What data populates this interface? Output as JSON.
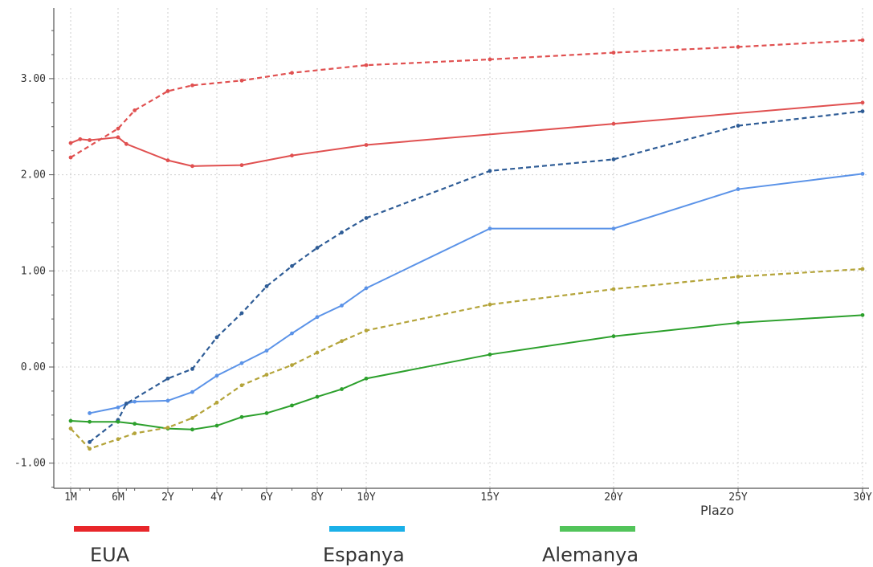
{
  "chart_data": {
    "type": "line",
    "xlabel": "Plazo",
    "ylabel": "",
    "x_categories": [
      "1M",
      "3M",
      "6M",
      "9M",
      "1Y",
      "2Y",
      "3Y",
      "4Y",
      "5Y",
      "6Y",
      "7Y",
      "8Y",
      "9Y",
      "10Y",
      "15Y",
      "20Y",
      "25Y",
      "30Y"
    ],
    "x_tick_labels": [
      "1M",
      "6M",
      "2Y",
      "4Y",
      "6Y",
      "8Y",
      "10Y",
      "15Y",
      "20Y",
      "25Y",
      "30Y"
    ],
    "y_tick_labels": [
      "-1.00",
      "0.00",
      "1.00",
      "2.00",
      "3.00"
    ],
    "ylim": [
      -1.25,
      3.65
    ],
    "grid": true,
    "series": [
      {
        "name": "EUA",
        "style": "solid",
        "color": "#e05050",
        "points": [
          [
            "1M",
            2.33
          ],
          [
            "2M",
            2.37
          ],
          [
            "3M",
            2.36
          ],
          [
            "6M",
            2.39
          ],
          [
            "9M",
            2.32
          ],
          [
            "2Y",
            2.15
          ],
          [
            "3Y",
            2.09
          ],
          [
            "5Y",
            2.1
          ],
          [
            "7Y",
            2.2
          ],
          [
            "10Y",
            2.31
          ],
          [
            "20Y",
            2.53
          ],
          [
            "30Y",
            2.75
          ]
        ]
      },
      {
        "name": "EUA",
        "style": "dashed",
        "color": "#e05050",
        "points": [
          [
            "1M",
            2.18
          ],
          [
            "6M",
            2.48
          ],
          [
            "1Y",
            2.67
          ],
          [
            "2Y",
            2.87
          ],
          [
            "3Y",
            2.93
          ],
          [
            "5Y",
            2.98
          ],
          [
            "7Y",
            3.06
          ],
          [
            "10Y",
            3.14
          ],
          [
            "15Y",
            3.2
          ],
          [
            "20Y",
            3.27
          ],
          [
            "25Y",
            3.33
          ],
          [
            "30Y",
            3.4
          ]
        ]
      },
      {
        "name": "Espanya",
        "style": "solid",
        "color": "#5b93e8",
        "points": [
          [
            "3M",
            -0.48
          ],
          [
            "6M",
            -0.42
          ],
          [
            "9M",
            -0.38
          ],
          [
            "1Y",
            -0.36
          ],
          [
            "2Y",
            -0.35
          ],
          [
            "3Y",
            -0.26
          ],
          [
            "4Y",
            -0.09
          ],
          [
            "5Y",
            0.04
          ],
          [
            "6Y",
            0.17
          ],
          [
            "7Y",
            0.35
          ],
          [
            "8Y",
            0.52
          ],
          [
            "9Y",
            0.64
          ],
          [
            "10Y",
            0.82
          ],
          [
            "15Y",
            1.44
          ],
          [
            "20Y",
            1.44
          ],
          [
            "25Y",
            1.85
          ],
          [
            "30Y",
            2.01
          ]
        ]
      },
      {
        "name": "Espanya",
        "style": "dashed",
        "color": "#2e5c96",
        "points": [
          [
            "3M",
            -0.78
          ],
          [
            "6M",
            -0.55
          ],
          [
            "9M",
            -0.38
          ],
          [
            "2Y",
            -0.12
          ],
          [
            "3Y",
            -0.02
          ],
          [
            "4Y",
            0.31
          ],
          [
            "5Y",
            0.56
          ],
          [
            "6Y",
            0.84
          ],
          [
            "7Y",
            1.05
          ],
          [
            "8Y",
            1.24
          ],
          [
            "9Y",
            1.4
          ],
          [
            "10Y",
            1.55
          ],
          [
            "15Y",
            2.04
          ],
          [
            "20Y",
            2.16
          ],
          [
            "25Y",
            2.51
          ],
          [
            "30Y",
            2.66
          ]
        ]
      },
      {
        "name": "Alemanya",
        "style": "solid",
        "color": "#2ca02c",
        "points": [
          [
            "1M",
            -0.56
          ],
          [
            "3M",
            -0.57
          ],
          [
            "6M",
            -0.57
          ],
          [
            "1Y",
            -0.59
          ],
          [
            "2Y",
            -0.64
          ],
          [
            "3Y",
            -0.65
          ],
          [
            "4Y",
            -0.61
          ],
          [
            "5Y",
            -0.52
          ],
          [
            "6Y",
            -0.48
          ],
          [
            "7Y",
            -0.4
          ],
          [
            "8Y",
            -0.31
          ],
          [
            "9Y",
            -0.23
          ],
          [
            "10Y",
            -0.12
          ],
          [
            "15Y",
            0.13
          ],
          [
            "20Y",
            0.32
          ],
          [
            "25Y",
            0.46
          ],
          [
            "30Y",
            0.54
          ]
        ]
      },
      {
        "name": "Alemanya",
        "style": "dashed",
        "color": "#b4a43a",
        "points": [
          [
            "1M",
            -0.64
          ],
          [
            "3M",
            -0.85
          ],
          [
            "6M",
            -0.75
          ],
          [
            "1Y",
            -0.69
          ],
          [
            "2Y",
            -0.63
          ],
          [
            "3Y",
            -0.53
          ],
          [
            "4Y",
            -0.37
          ],
          [
            "5Y",
            -0.19
          ],
          [
            "6Y",
            -0.08
          ],
          [
            "7Y",
            0.02
          ],
          [
            "8Y",
            0.15
          ],
          [
            "9Y",
            0.27
          ],
          [
            "10Y",
            0.38
          ],
          [
            "15Y",
            0.65
          ],
          [
            "20Y",
            0.81
          ],
          [
            "25Y",
            0.94
          ],
          [
            "30Y",
            1.02
          ]
        ]
      }
    ]
  },
  "legend": [
    {
      "label": "EUA",
      "color": "#e8262a"
    },
    {
      "label": "Espanya",
      "color": "#1ab0e8"
    },
    {
      "label": "Alemanya",
      "color": "#52c45a"
    }
  ]
}
